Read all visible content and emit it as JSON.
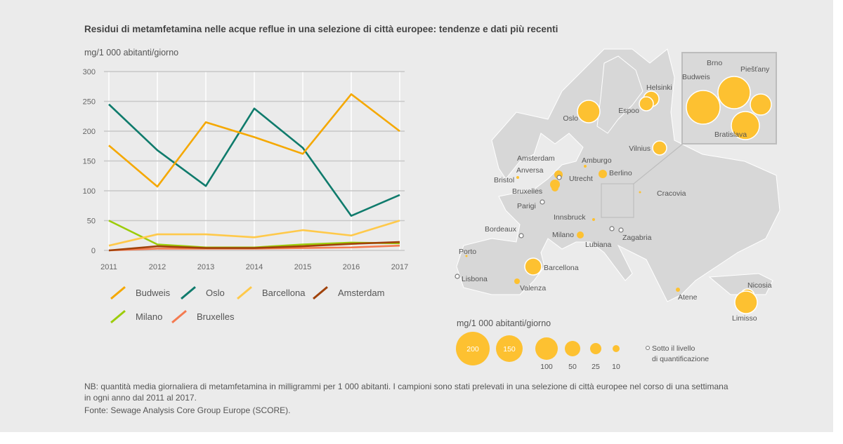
{
  "title": "Residui di metamfetamina nelle acque reflue in una selezione di città europee: tendenze e dati più recenti",
  "chart_data": [
    {
      "type": "line",
      "ylabel": "mg/1 000 abitanti/giorno",
      "x": [
        "2011",
        "2012",
        "2013",
        "2014",
        "2015",
        "2016",
        "2017"
      ],
      "yticks": [
        "0",
        "50",
        "100",
        "150",
        "200",
        "250",
        "300"
      ],
      "ylim": [
        0,
        300
      ],
      "grid": true,
      "legend_placement": "bottom",
      "series": [
        {
          "name": "Budweis",
          "color": "#f5a800",
          "values": [
            176,
            107,
            215,
            190,
            162,
            262,
            200
          ]
        },
        {
          "name": "Oslo",
          "color": "#0f7b6c",
          "values": [
            245,
            168,
            108,
            238,
            172,
            58,
            93
          ]
        },
        {
          "name": "Barcellona",
          "color": "#ffc94a",
          "values": [
            8,
            27,
            27,
            22,
            34,
            25,
            50
          ]
        },
        {
          "name": "Amsterdam",
          "color": "#a0420a",
          "values": [
            0,
            7,
            4,
            4,
            7,
            11,
            14
          ]
        },
        {
          "name": "Milano",
          "color": "#9ccc0a",
          "values": [
            50,
            10,
            5,
            5,
            10,
            13,
            12
          ]
        },
        {
          "name": "Bruxelles",
          "color": "#f47a50",
          "values": [
            0,
            3,
            3,
            3,
            4,
            5,
            8
          ]
        }
      ]
    },
    {
      "type": "bubble-map",
      "bubble_color": "#fdc131",
      "cities": [
        "Oslo",
        "Helsinki",
        "Espoo",
        "Vilnius",
        "Amburgo",
        "Berlino",
        "Amsterdam",
        "Utrecht",
        "Anversa",
        "Bruxelles",
        "Bristol",
        "Parigi",
        "Innsbruck",
        "Milano",
        "Lubiana",
        "Zagabria",
        "Bordeaux",
        "Porto",
        "Lisbona",
        "Barcellona",
        "Valenza",
        "Atene",
        "Nicosia",
        "Limisso",
        "Cracovia",
        "Budweis",
        "Brno",
        "Piešťany",
        "Bratislava"
      ],
      "below_quantification": [
        "Utrecht",
        "Parigi",
        "Lubiana",
        "Zagabria",
        "Bordeaux",
        "Lisbona"
      ],
      "size_legend": {
        "unit": "mg/1 000 abitanti/giorno",
        "values": [
          "200",
          "150",
          "100",
          "50",
          "25",
          "10"
        ],
        "below_label_1": "Sotto il livello",
        "below_label_2": "di quantificazione"
      }
    }
  ],
  "note": "NB: quantità media giornaliera di metamfetamina in milligrammi per 1 000 abitanti. I campioni sono stati prelevati in una selezione di città europee nel corso di una settimana in ogni anno dal 2011 al 2017.",
  "source": "Fonte: Sewage Analysis Core Group Europe (SCORE)."
}
